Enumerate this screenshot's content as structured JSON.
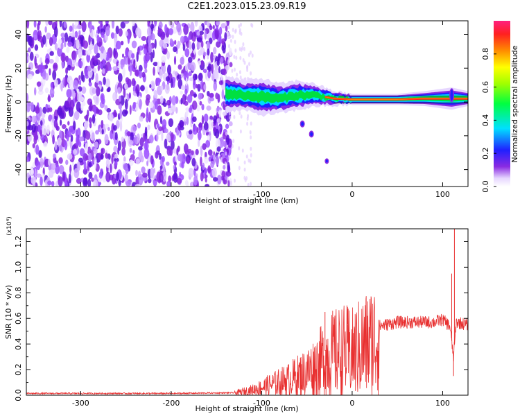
{
  "title": "C2E1.2023.015.23.09.R19",
  "chart_data": [
    {
      "type": "heatmap",
      "xlabel": "Height of straight line (km)",
      "ylabel": "Frequency (Hz)",
      "xlim": [
        -360,
        128
      ],
      "ylim": [
        -50,
        48
      ],
      "x_ticks": [
        -300,
        -200,
        -100,
        0,
        100
      ],
      "y_ticks": [
        -40,
        -20,
        0,
        20,
        40
      ],
      "noise_region_x": [
        -360,
        -140
      ],
      "signal_band": [
        {
          "x": -140,
          "center": 5,
          "halfwidth": 5
        },
        {
          "x": -120,
          "center": 4,
          "halfwidth": 4
        },
        {
          "x": -100,
          "center": 3,
          "halfwidth": 5
        },
        {
          "x": -80,
          "center": 2,
          "halfwidth": 4
        },
        {
          "x": -60,
          "center": 4,
          "halfwidth": 4
        },
        {
          "x": -40,
          "center": 4,
          "halfwidth": 3
        },
        {
          "x": -20,
          "center": 2,
          "halfwidth": 2
        },
        {
          "x": 0,
          "center": 1.5,
          "halfwidth": 1.5
        },
        {
          "x": 50,
          "center": 1.5,
          "halfwidth": 1.5
        },
        {
          "x": 80,
          "center": 2,
          "halfwidth": 2
        },
        {
          "x": 110,
          "center": 2,
          "halfwidth": 3
        },
        {
          "x": 128,
          "center": 2,
          "halfwidth": 2
        }
      ],
      "colorbar": {
        "label": "Normalized spectral amplitude",
        "ticks": [
          "0.0",
          "0.2",
          "0.4",
          "0.6",
          "0.8"
        ],
        "range": [
          0,
          1
        ]
      }
    },
    {
      "type": "line",
      "xlabel": "Height of straight line (km)",
      "ylabel": "SNR (10 * v/v)",
      "y_multiplier": "(x10⁴)",
      "xlim": [
        -360,
        128
      ],
      "ylim": [
        0,
        1.3
      ],
      "x_ticks": [
        -300,
        -200,
        -100,
        0,
        100
      ],
      "y_ticks": [
        "0.0",
        "0.2",
        "0.4",
        "0.6",
        "0.8",
        "1.0",
        "1.2"
      ],
      "series": [
        {
          "color": "#e83030",
          "envelope": [
            {
              "x": -360,
              "y": 0.015
            },
            {
              "x": -200,
              "y": 0.015
            },
            {
              "x": -130,
              "y": 0.02
            },
            {
              "x": -110,
              "y": 0.05
            },
            {
              "x": -90,
              "y": 0.1
            },
            {
              "x": -70,
              "y": 0.15
            },
            {
              "x": -50,
              "y": 0.22
            },
            {
              "x": -40,
              "y": 0.28
            },
            {
              "x": -25,
              "y": 0.38
            },
            {
              "x": -10,
              "y": 0.42
            },
            {
              "x": 0,
              "y": 0.4
            },
            {
              "x": 10,
              "y": 0.45
            },
            {
              "x": 20,
              "y": 0.5
            },
            {
              "x": 30,
              "y": 0.55
            },
            {
              "x": 50,
              "y": 0.58
            },
            {
              "x": 70,
              "y": 0.58
            },
            {
              "x": 90,
              "y": 0.58
            },
            {
              "x": 100,
              "y": 0.6
            },
            {
              "x": 108,
              "y": 0.55
            },
            {
              "x": 112,
              "y": 0.3
            },
            {
              "x": 115,
              "y": 0.58
            },
            {
              "x": 128,
              "y": 0.56
            }
          ],
          "spikes": [
            {
              "x": -30,
              "y": 0.65
            },
            {
              "x": -20,
              "y": 0.55
            },
            {
              "x": -5,
              "y": 0.55
            },
            {
              "x": 110,
              "y": 0.95
            },
            {
              "x": 113,
              "y": 1.3
            },
            {
              "x": 112,
              "y": 0.15
            }
          ]
        }
      ]
    }
  ]
}
